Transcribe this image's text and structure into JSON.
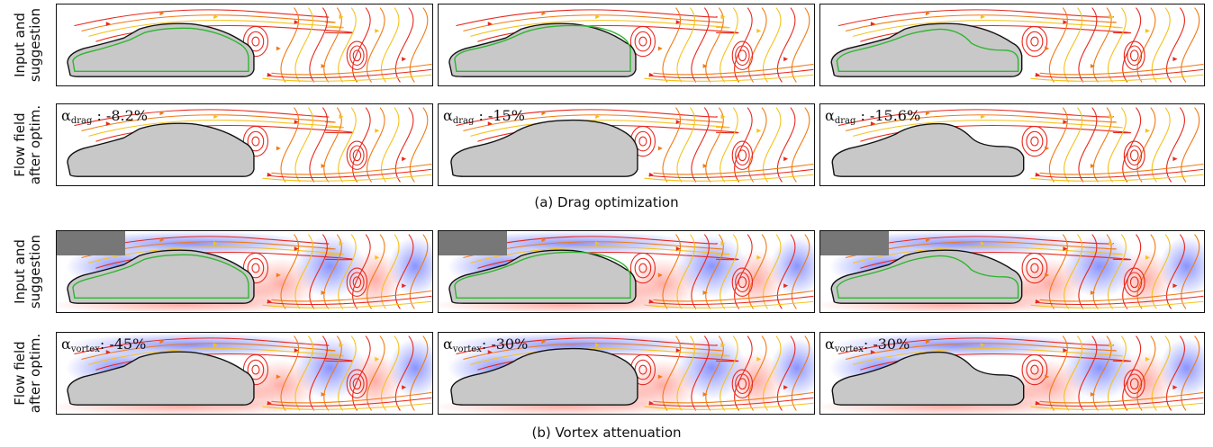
{
  "row_labels": {
    "input": [
      "Input and",
      "suggestion"
    ],
    "after": [
      "Flow field",
      "after optim."
    ]
  },
  "sections": [
    {
      "caption": "(a) Drag optimization",
      "mode": "drag",
      "alpha_symbol": "α",
      "alpha_sub": "drag",
      "values": [
        " : -8.2%",
        " : -15%",
        " : -15.6%"
      ]
    },
    {
      "caption": "(b) Vortex attenuation",
      "mode": "vortex",
      "alpha_symbol": "α",
      "alpha_sub": "vortex",
      "values": [
        ": -45%",
        ": -30%",
        ": -30%"
      ]
    }
  ],
  "colors": {
    "car_fill": "#c8c8c8",
    "suggestion_outline": "#2db52d",
    "stream_hot": "#e8281e",
    "stream_mid": "#f07a14",
    "stream_cool": "#f5c21c",
    "vortex_positive": "#ff4a3a",
    "vortex_negative": "#2a3cff",
    "inset_bg": "#777777"
  }
}
